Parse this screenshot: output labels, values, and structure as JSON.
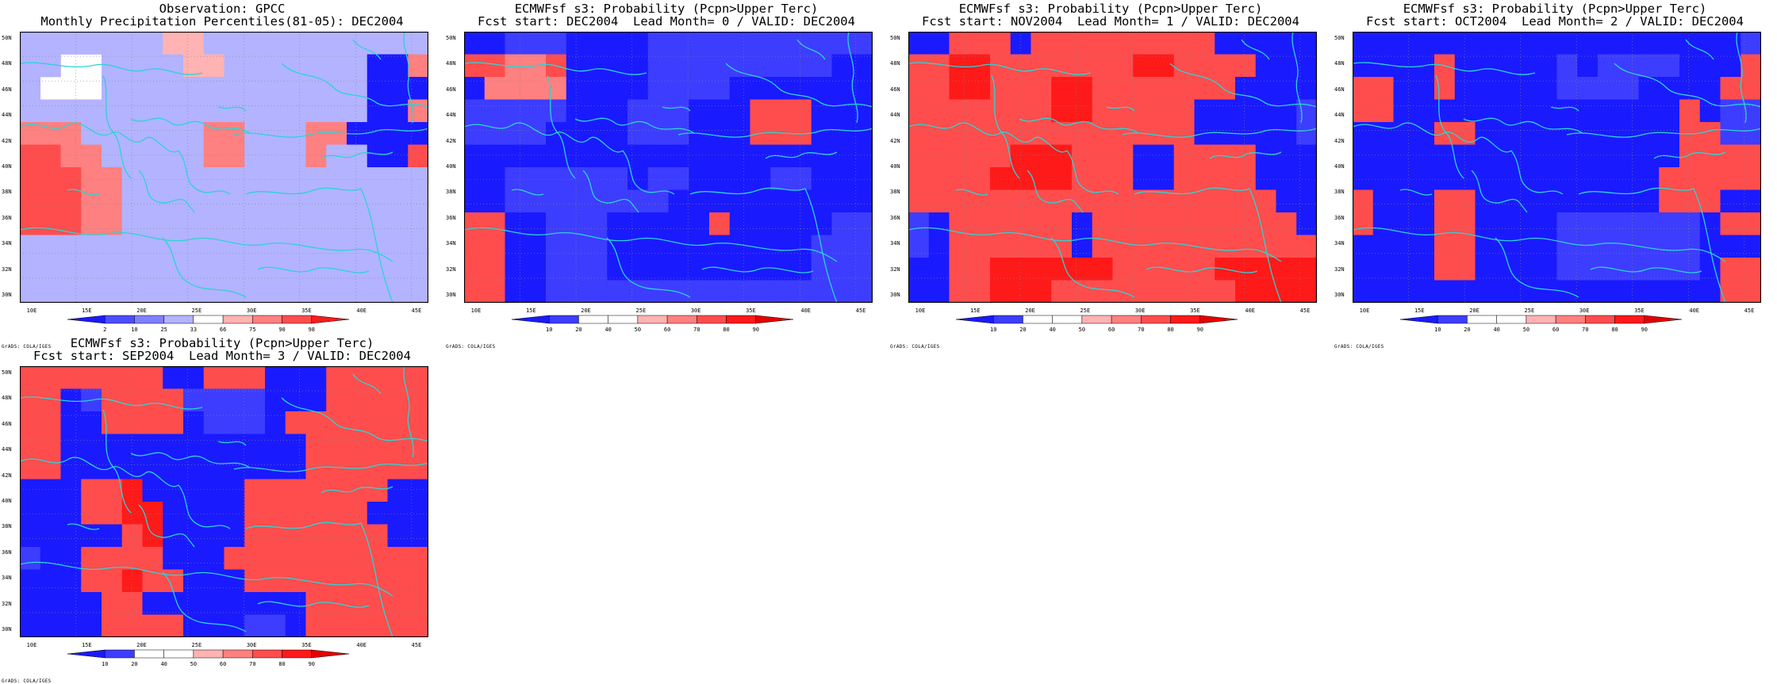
{
  "colors": {
    "coast": "#2bd4d4",
    "neutral": "#ffffff",
    "frame": "#000000"
  },
  "credit": "GrADS: COLA/IGES",
  "lon_labels": [
    "10E",
    "15E",
    "20E",
    "25E",
    "30E",
    "35E",
    "40E",
    "45E"
  ],
  "lat_labels": [
    "50N",
    "48N",
    "46N",
    "44N",
    "42N",
    "40N",
    "38N",
    "36N",
    "34N",
    "32N",
    "30N"
  ],
  "panels": [
    {
      "title1": "Observation: GPCC",
      "title2": "Monthly Precipitation Percentiles(81-05): DEC2004",
      "colorbar": {
        "labels": [
          "2",
          "10",
          "25",
          "33",
          "66",
          "75",
          "90",
          "98"
        ],
        "colors": [
          "#1a1aff",
          "#4d4dff",
          "#8080ff",
          "#b3b3ff",
          "#ffffff",
          "#ffb3b3",
          "#ff8080",
          "#ff4d4d",
          "#ff1a1a"
        ]
      },
      "grid": [
        "33333335533333333333",
        "33443333553333333006",
        "34443333333333333000",
        "33333333333333333006",
        "66633333366333660000",
        "77663333366333633007",
        "77766333333333333333",
        "77766333333333333333",
        "77766333333333333333",
        "33333333333333333333",
        "33333333333333333333",
        "33333333333333333333"
      ]
    },
    {
      "title1": "ECMWFsf s3: Probability (Pcpn>Upper Terc)",
      "title2": "Fcst start: DEC2004  Lead Month= 0 / VALID: DEC2004",
      "colorbar": {
        "labels": [
          "10",
          "20",
          "40",
          "50",
          "60",
          "70",
          "80",
          "90"
        ],
        "colors": [
          "#1a1aff",
          "#3d3dff",
          "#ffffff",
          "#ffffff",
          "#ffb3b3",
          "#ff8080",
          "#ff4d4d",
          "#ff1a1a",
          "#e60000"
        ]
      },
      "grid": [
        "00111000011111111111",
        "66556000011111111100",
        "05555000011110000000",
        "11111000111000666000",
        "11110000111000666000",
        "00000000000000000000",
        "00111111011000011000",
        "00111111110000000000",
        "66001110000060000011",
        "66001110000000000111",
        "66001110000000000111",
        "66001111111111111111"
      ]
    },
    {
      "title1": "ECMWFsf s3: Probability (Pcpn>Upper Terc)",
      "title2": "Fcst start: NOV2004  Lead Month= 1 / VALID: DEC2004",
      "colorbar": {
        "labels": [
          "10",
          "20",
          "40",
          "50",
          "60",
          "70",
          "80",
          "90"
        ],
        "colors": [
          "#1a1aff",
          "#3d3dff",
          "#ffffff",
          "#ffffff",
          "#ffb3b3",
          "#ff8080",
          "#ff4d4d",
          "#ff1a1a",
          "#e60000"
        ]
      },
      "grid": [
        "00666066666666600000",
        "66776666666776666000",
        "66776667766666660000",
        "66666667766666000001",
        "66666666666666000001",
        "66666777666006666000",
        "66667777666006666000",
        "66666666666666666600",
        "10666666066666666660",
        "10666666066666666666",
        "00667777776666677777",
        "00667776666666667777"
      ]
    },
    {
      "title1": "ECMWFsf s3: Probability (Pcpn>Upper Terc)",
      "title2": "Fcst start: OCT2004  Lead Month= 2 / VALID: DEC2004",
      "colorbar": {
        "labels": [
          "10",
          "20",
          "40",
          "50",
          "60",
          "70",
          "80",
          "90"
        ],
        "colors": [
          "#1a1aff",
          "#3d3dff",
          "#ffffff",
          "#ffffff",
          "#ffb3b3",
          "#ff8080",
          "#ff4d4d",
          "#ff1a1a",
          "#e60000"
        ]
      },
      "grid": [
        "00000000000000000001",
        "00006000001011110006",
        "66006000001111000066",
        "66000000000000006011",
        "00006600000000006611",
        "00000000000000006666",
        "00000000000000066666",
        "60006600000000066600",
        "60006600001111111066",
        "00006600001111111000",
        "00006600001111111066",
        "00000000000000000066"
      ]
    },
    {
      "title1": "ECMWFsf s3: Probability (Pcpn>Upper Terc)",
      "title2": "Fcst start: SEP2004  Lead Month= 3 / VALID: DEC2004",
      "colorbar": {
        "labels": [
          "10",
          "20",
          "40",
          "50",
          "60",
          "70",
          "80",
          "90"
        ],
        "colors": [
          "#1a1aff",
          "#3d3dff",
          "#ffffff",
          "#ffffff",
          "#ffb3b3",
          "#ff8080",
          "#ff4d4d",
          "#ff1a1a",
          "#e60000"
        ]
      },
      "grid": [
        "66666660066600066666",
        "66016666111100066666",
        "66006666011106666666",
        "66000000000000666666",
        "66000000000000666666",
        "00066700000666666600",
        "00066770000666666000",
        "00000670000666666600",
        "10066660006666666666",
        "00066766000666666666",
        "00006600000000666666",
        "00006666000110666666"
      ]
    }
  ]
}
